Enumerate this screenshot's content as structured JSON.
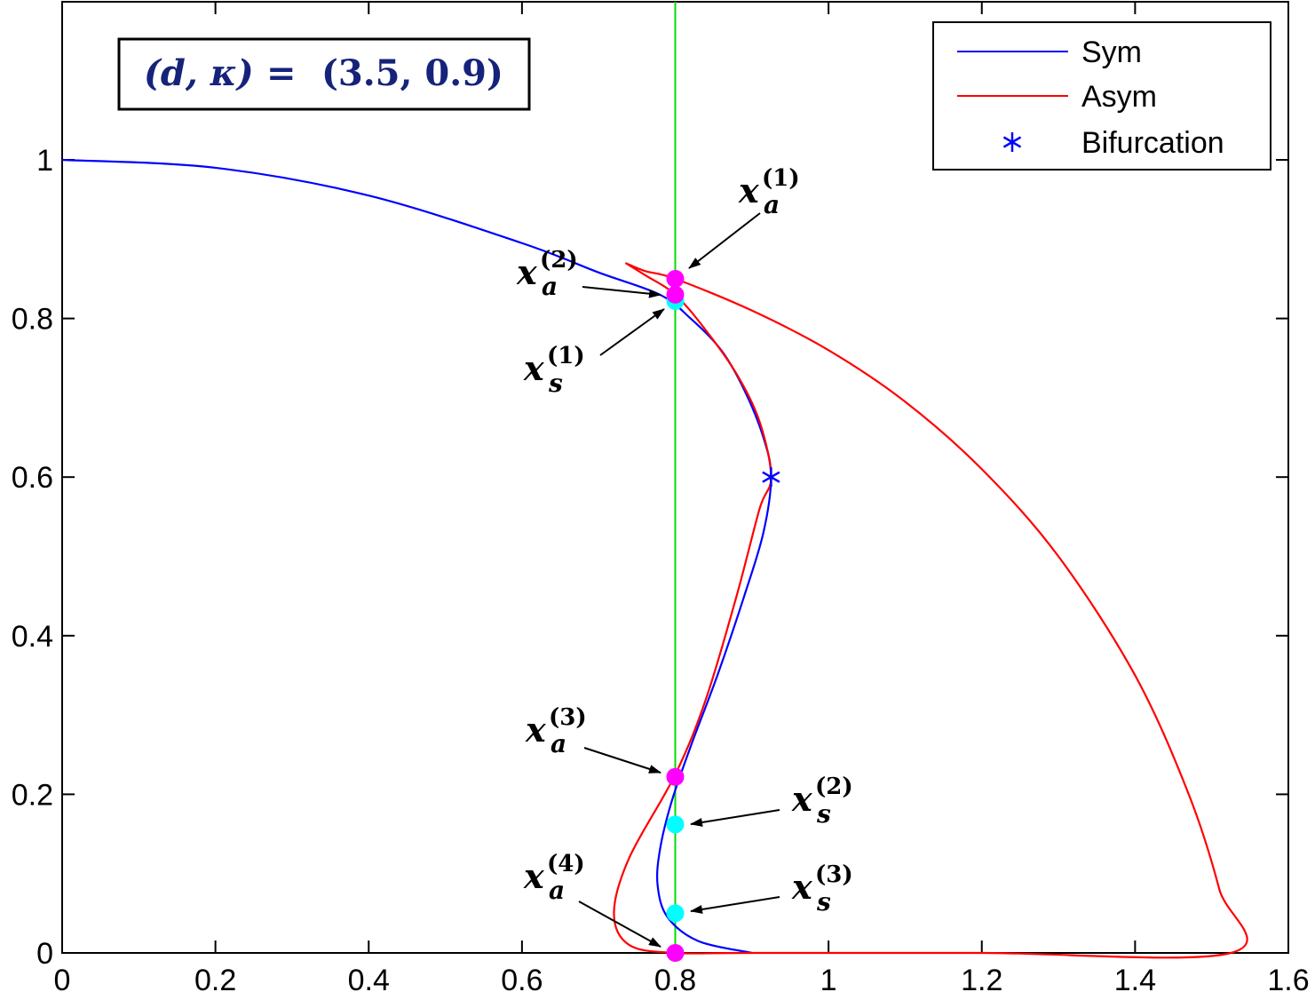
{
  "chart_data": {
    "type": "line",
    "xlim": [
      0,
      1.6
    ],
    "ylim": [
      0,
      1.2
    ],
    "x_ticks": [
      "0",
      "0.2",
      "0.4",
      "0.6",
      "0.8",
      "1",
      "1.2",
      "1.4",
      "1.6"
    ],
    "y_ticks": [
      "0",
      "0.2",
      "0.4",
      "0.6",
      "0.8",
      "1"
    ],
    "grid": false,
    "legend_position": "top-right",
    "parameter_box": {
      "lhs": "(d, κ)",
      "eq": "=",
      "rhs": "(3.5, 0.9)"
    },
    "vertical_line": {
      "x": 0.8,
      "color": "#00dd00"
    },
    "series": [
      {
        "name": "Sym",
        "color": "#0000ff",
        "points": [
          [
            0,
            1.0
          ],
          [
            0.2,
            0.99
          ],
          [
            0.4,
            0.955
          ],
          [
            0.6,
            0.895
          ],
          [
            0.7,
            0.858
          ],
          [
            0.78,
            0.83
          ],
          [
            0.82,
            0.8
          ],
          [
            0.86,
            0.76
          ],
          [
            0.89,
            0.71
          ],
          [
            0.915,
            0.65
          ],
          [
            0.925,
            0.6
          ],
          [
            0.915,
            0.53
          ],
          [
            0.89,
            0.45
          ],
          [
            0.855,
            0.35
          ],
          [
            0.82,
            0.26
          ],
          [
            0.795,
            0.19
          ],
          [
            0.78,
            0.13
          ],
          [
            0.777,
            0.085
          ],
          [
            0.79,
            0.045
          ],
          [
            0.83,
            0.015
          ],
          [
            0.9,
            0.0
          ]
        ]
      },
      {
        "name": "Asym",
        "color": "#ff0000",
        "points": [
          [
            0.735,
            0.87
          ],
          [
            0.76,
            0.86
          ],
          [
            0.8,
            0.85
          ],
          [
            0.9,
            0.81
          ],
          [
            1.0,
            0.76
          ],
          [
            1.1,
            0.695
          ],
          [
            1.2,
            0.61
          ],
          [
            1.3,
            0.5
          ],
          [
            1.4,
            0.35
          ],
          [
            1.47,
            0.2
          ],
          [
            1.51,
            0.08
          ],
          [
            1.525,
            0.0
          ],
          [
            1.2,
            0.0
          ],
          [
            0.9,
            0.0
          ],
          [
            0.8,
            0.0
          ],
          [
            0.74,
            0.01
          ],
          [
            0.72,
            0.05
          ],
          [
            0.74,
            0.12
          ],
          [
            0.8,
            0.225
          ],
          [
            0.84,
            0.32
          ],
          [
            0.88,
            0.45
          ],
          [
            0.91,
            0.56
          ],
          [
            0.925,
            0.6
          ],
          [
            0.91,
            0.67
          ],
          [
            0.88,
            0.73
          ],
          [
            0.84,
            0.785
          ],
          [
            0.8,
            0.83
          ],
          [
            0.76,
            0.855
          ],
          [
            0.735,
            0.87
          ]
        ]
      }
    ],
    "bifurcation": {
      "name": "Bifurcation",
      "x": 0.925,
      "y": 0.6,
      "color": "#0000ff"
    },
    "markers": [
      {
        "label": "x",
        "sub": "a",
        "sup": "(1)",
        "x": 0.8,
        "y": 0.85,
        "color": "#ff00ff"
      },
      {
        "label": "x",
        "sub": "a",
        "sup": "(2)",
        "x": 0.8,
        "y": 0.83,
        "color": "#ff00ff"
      },
      {
        "label": "x",
        "sub": "s",
        "sup": "(1)",
        "x": 0.8,
        "y": 0.822,
        "color": "#00ffff"
      },
      {
        "label": "x",
        "sub": "a",
        "sup": "(3)",
        "x": 0.8,
        "y": 0.222,
        "color": "#ff00ff"
      },
      {
        "label": "x",
        "sub": "s",
        "sup": "(2)",
        "x": 0.8,
        "y": 0.162,
        "color": "#00ffff"
      },
      {
        "label": "x",
        "sub": "s",
        "sup": "(3)",
        "x": 0.8,
        "y": 0.05,
        "color": "#00ffff"
      },
      {
        "label": "x",
        "sub": "a",
        "sup": "(4)",
        "x": 0.8,
        "y": 0.0,
        "color": "#ff00ff"
      }
    ]
  }
}
